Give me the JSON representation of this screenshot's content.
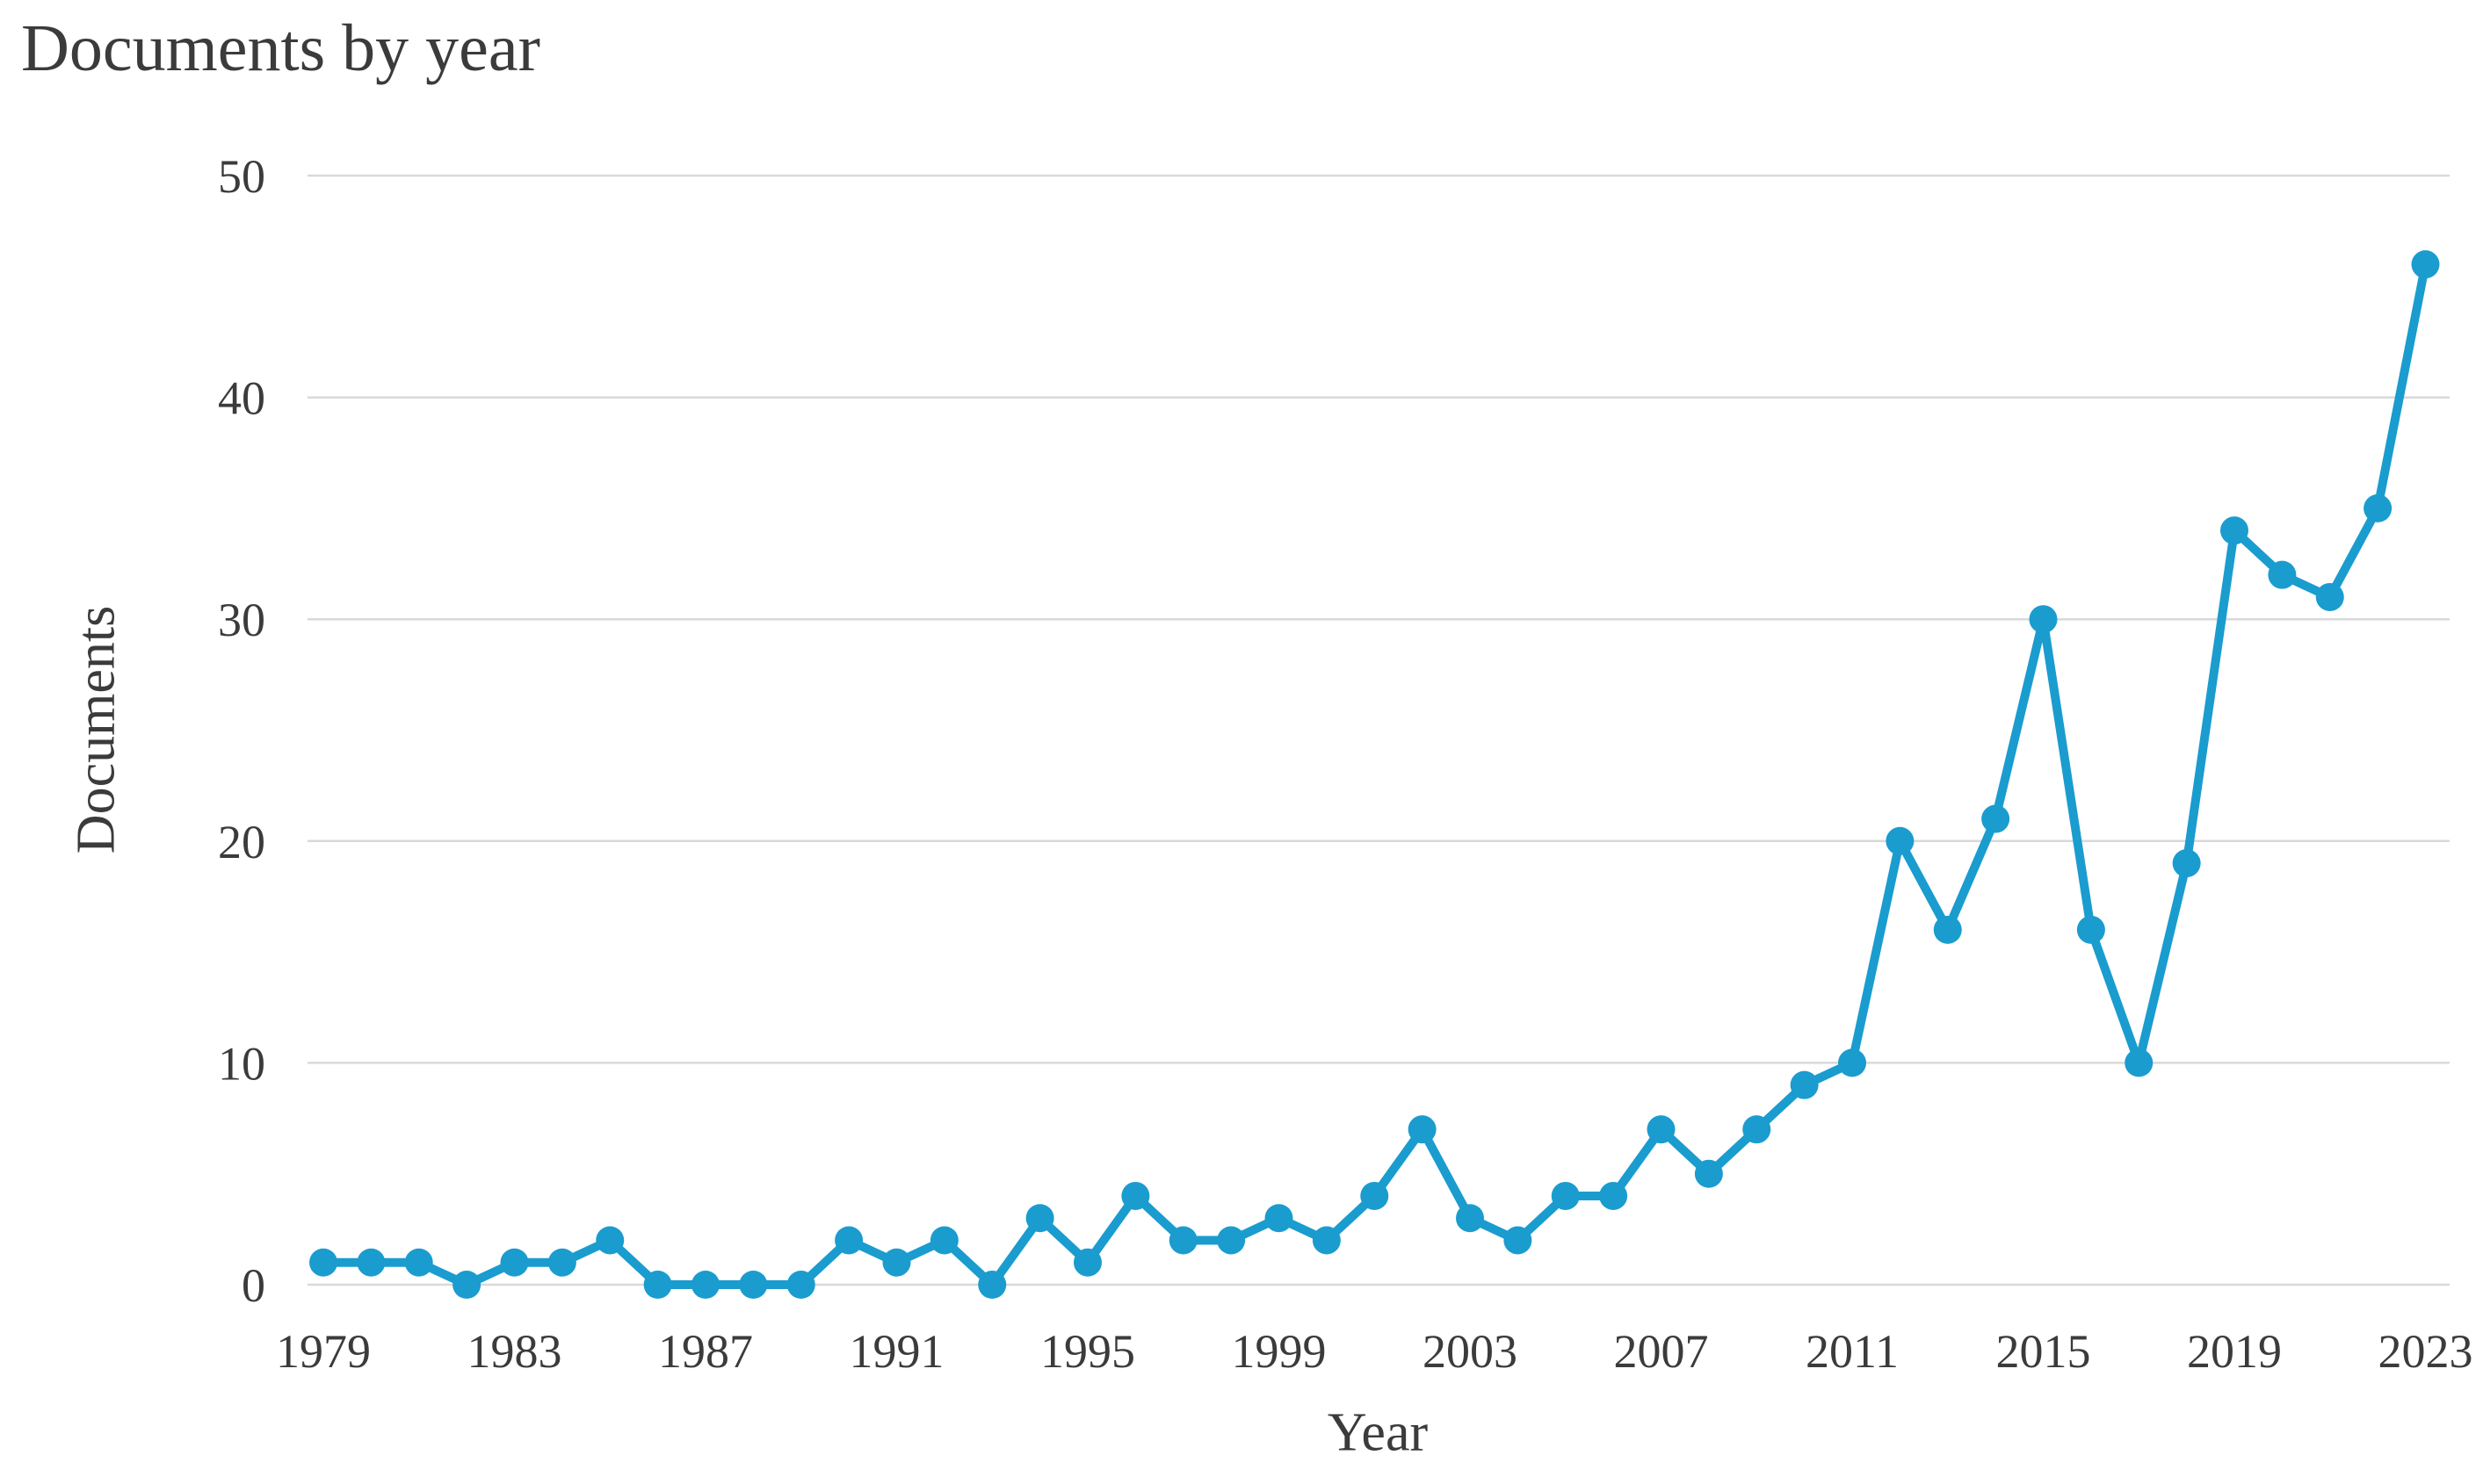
{
  "page": {
    "background_color": "#ffffff"
  },
  "chart_data": {
    "type": "line",
    "title": "Documents by year",
    "xlabel": "Year",
    "ylabel": "Documents",
    "x": [
      1979,
      1980,
      1981,
      1982,
      1983,
      1984,
      1985,
      1986,
      1987,
      1988,
      1989,
      1990,
      1991,
      1992,
      1993,
      1994,
      1995,
      1996,
      1997,
      1998,
      1999,
      2000,
      2001,
      2002,
      2003,
      2004,
      2005,
      2006,
      2007,
      2008,
      2009,
      2010,
      2011,
      2012,
      2013,
      2014,
      2015,
      2016,
      2017,
      2018,
      2019,
      2020,
      2021,
      2022,
      2023
    ],
    "series": [
      {
        "name": "Documents",
        "values": [
          1,
          1,
          1,
          0,
          1,
          1,
          2,
          0,
          0,
          0,
          0,
          2,
          1,
          2,
          0,
          3,
          1,
          4,
          2,
          2,
          3,
          2,
          4,
          7,
          3,
          2,
          4,
          4,
          7,
          5,
          7,
          9,
          10,
          20,
          16,
          21,
          30,
          16,
          10,
          19,
          34,
          32,
          31,
          35,
          46
        ]
      }
    ],
    "ylim": [
      0,
      50
    ],
    "yticks": [
      0,
      10,
      20,
      30,
      40,
      50
    ],
    "xticks": [
      1979,
      1983,
      1987,
      1991,
      1995,
      1999,
      2003,
      2007,
      2011,
      2015,
      2019,
      2023
    ],
    "grid": "horizontal",
    "legend": "none",
    "marker": "circle",
    "line_color": "#1a9ccf",
    "marker_color": "#1a9ccf",
    "grid_color": "#d9d9d9",
    "text_color": "#3b3b3b"
  }
}
